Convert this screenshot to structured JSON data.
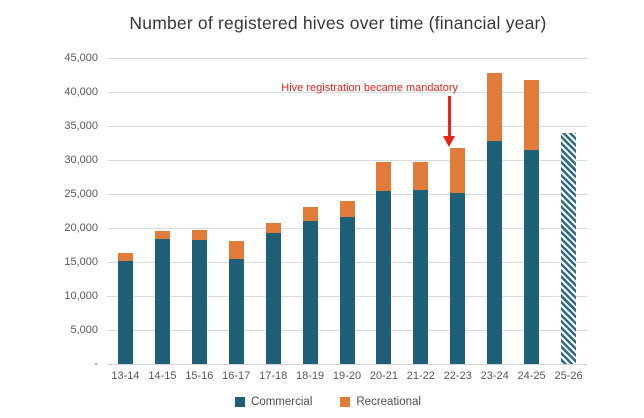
{
  "chart_data": {
    "type": "bar",
    "stacked": true,
    "title": "Number of registered hives over time (financial year)",
    "categories": [
      "13-14",
      "14-15",
      "15-16",
      "16-17",
      "17-18",
      "18-19",
      "19-20",
      "20-21",
      "21-22",
      "22-23",
      "23-24",
      "24-25",
      "25-26"
    ],
    "series": [
      {
        "name": "Commercial",
        "color": "#1f5f78",
        "values": [
          15100,
          18400,
          18200,
          15400,
          19200,
          21100,
          21600,
          25500,
          25600,
          25100,
          32800,
          31500,
          null
        ]
      },
      {
        "name": "Recreational",
        "color": "#e07b3a",
        "values": [
          1300,
          1200,
          1500,
          2700,
          1600,
          2000,
          2400,
          4200,
          4100,
          6700,
          10000,
          10200,
          null
        ]
      }
    ],
    "projected_bar": {
      "category": "25-26",
      "total": 34000,
      "style": "hatched-diagonal"
    },
    "annotation": {
      "text": "Hive registration became mandatory",
      "target_category": "22-23",
      "color": "#e8241a"
    },
    "y_axis": {
      "min": 0,
      "max": 45000,
      "tick_interval": 5000,
      "tick_labels": [
        "45,000",
        "40,000",
        "35,000",
        "30,000",
        "25,000",
        "20,000",
        "15,000",
        "10,000",
        "5,000",
        "-"
      ]
    },
    "x_axis": {
      "label": ""
    },
    "grid": true,
    "legend_position": "bottom"
  }
}
